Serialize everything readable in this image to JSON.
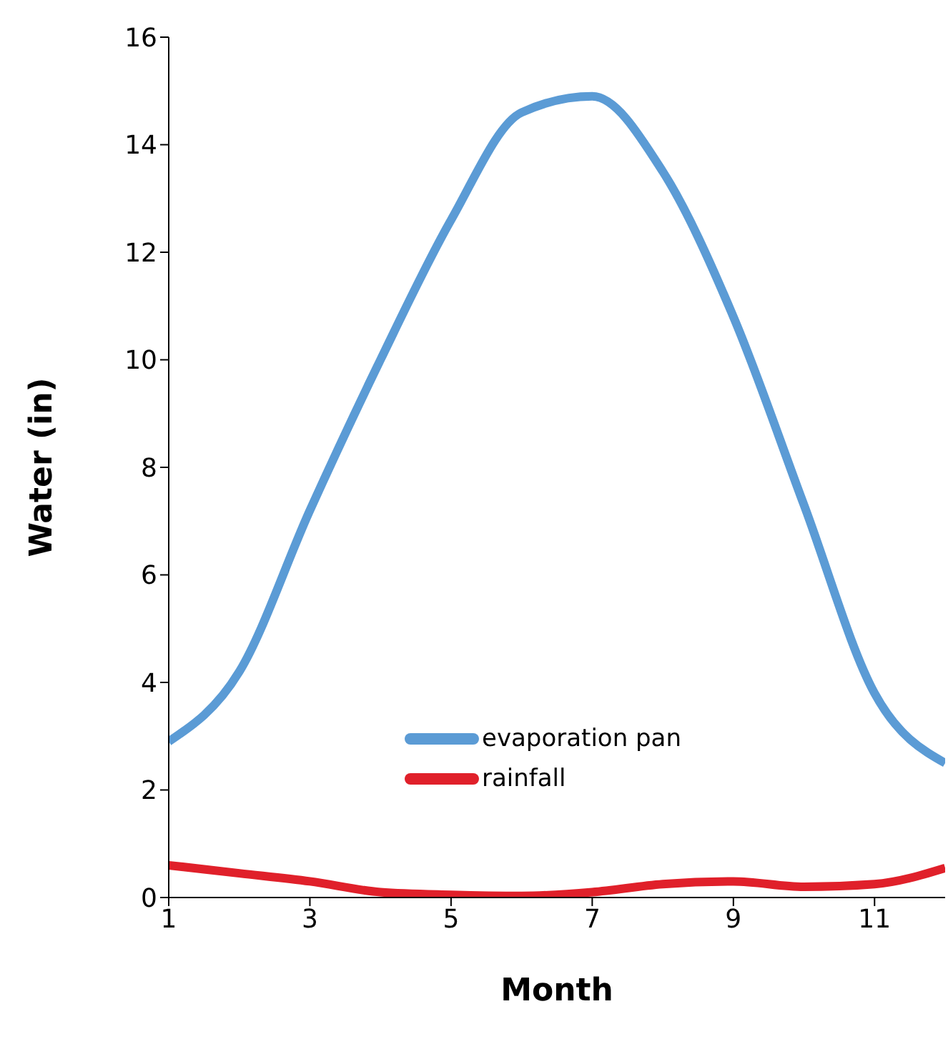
{
  "chart_data": {
    "type": "line",
    "xlabel": "Month",
    "ylabel": "Water (in)",
    "x": [
      1,
      2,
      3,
      4,
      5,
      6,
      7,
      8,
      9,
      10,
      11,
      12
    ],
    "series": [
      {
        "name": "evaporation pan",
        "color": "#5b9bd5",
        "values": [
          2.9,
          4.2,
          7.2,
          10,
          12.6,
          14.6,
          14.9,
          13.5,
          10.8,
          7.3,
          3.8,
          2.5
        ]
      },
      {
        "name": "rainfall",
        "color": "#e0202a",
        "values": [
          0.6,
          0.45,
          0.3,
          0.1,
          0.05,
          0.03,
          0.1,
          0.25,
          0.3,
          0.2,
          0.25,
          0.55
        ]
      }
    ],
    "xlim": [
      1,
      12
    ],
    "xticks": [
      1,
      3,
      5,
      7,
      9,
      11
    ],
    "ylim": [
      0,
      16
    ],
    "yticks": [
      0,
      2,
      4,
      6,
      8,
      10,
      12,
      14,
      16
    ],
    "legend": "bottom",
    "marker": "none",
    "line_style": "solid"
  }
}
